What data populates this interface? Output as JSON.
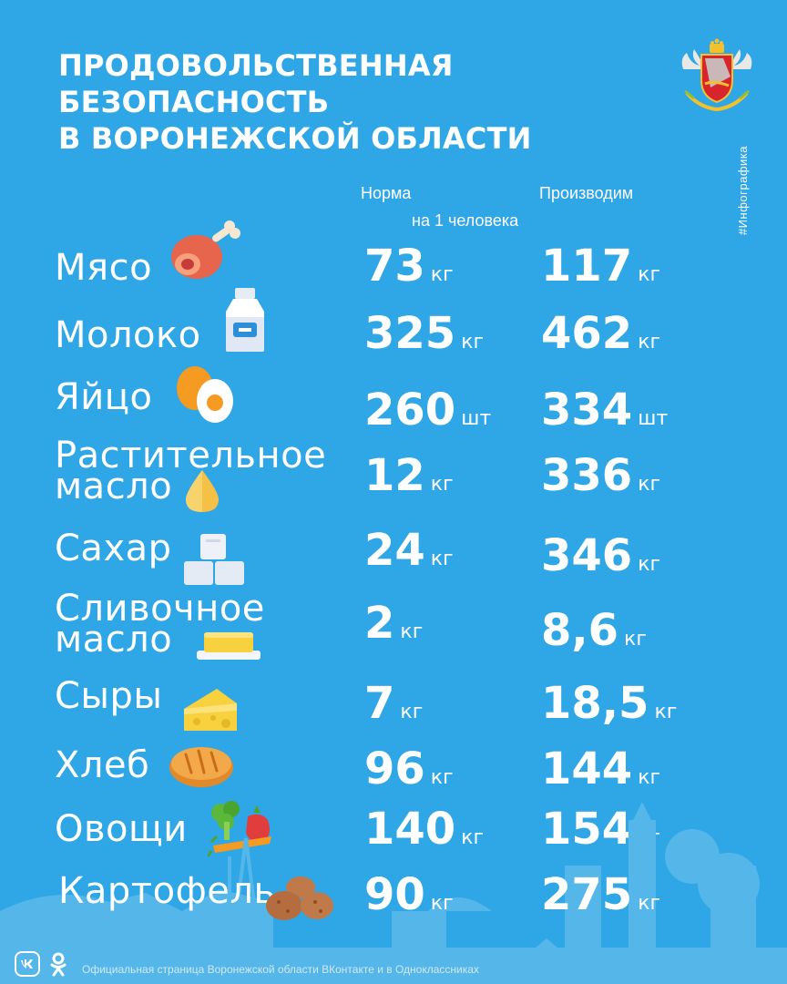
{
  "title": {
    "line1": "ПРОДОВОЛЬСТВЕННАЯ",
    "line2": "БЕЗОПАСНОСТЬ",
    "line3": "В ВОРОНЕЖСКОЙ ОБЛАСТИ"
  },
  "hashtag": "#Инфографика",
  "columns": {
    "norm": "Норма",
    "norm_sub": "на 1 человека",
    "produce": "Производим"
  },
  "products": [
    {
      "name": "Мясо",
      "norm": "73",
      "norm_unit": "кг",
      "produce": "117",
      "produce_unit": "кг",
      "icon": "meat-leg-icon"
    },
    {
      "name": "Молоко",
      "norm": "325",
      "norm_unit": "кг",
      "produce": "462",
      "produce_unit": "кг",
      "icon": "milk-bottle-icon"
    },
    {
      "name": "Яйцо",
      "norm": "260",
      "norm_unit": "шт",
      "produce": "334",
      "produce_unit": "шт",
      "icon": "egg-icon"
    },
    {
      "name": "Растительное",
      "name2": "масло",
      "norm": "12",
      "norm_unit": "кг",
      "produce": "336",
      "produce_unit": "кг",
      "icon": "oil-drop-icon"
    },
    {
      "name": "Сахар",
      "norm": "24",
      "norm_unit": "кг",
      "produce": "346",
      "produce_unit": "кг",
      "icon": "sugar-cubes-icon"
    },
    {
      "name": "Сливочное",
      "name2": "масло",
      "norm": "2",
      "norm_unit": "кг",
      "produce": "8,6",
      "produce_unit": "кг",
      "icon": "butter-icon"
    },
    {
      "name": "Сыры",
      "norm": "7",
      "norm_unit": "кг",
      "produce": "18,5",
      "produce_unit": "кг",
      "icon": "cheese-icon"
    },
    {
      "name": "Хлеб",
      "norm": "96",
      "norm_unit": "кг",
      "produce": "144",
      "produce_unit": "кг",
      "icon": "bread-icon"
    },
    {
      "name": "Овощи",
      "norm": "140",
      "norm_unit": "кг",
      "produce": "154",
      "produce_unit": "кг",
      "icon": "vegetables-icon"
    },
    {
      "name": "Картофель",
      "norm": "90",
      "norm_unit": "кг",
      "produce": "275",
      "produce_unit": "кг",
      "icon": "potato-icon"
    }
  ],
  "footer": {
    "text": "Официальная страница Воронежской области ВКонтакте и в Одноклассниках",
    "vk_icon": "vk-icon",
    "ok_icon": "odnoklassniki-icon"
  },
  "colors": {
    "background": "#2fa6e6",
    "skyline": "#55b6ea",
    "text": "#ffffff"
  }
}
